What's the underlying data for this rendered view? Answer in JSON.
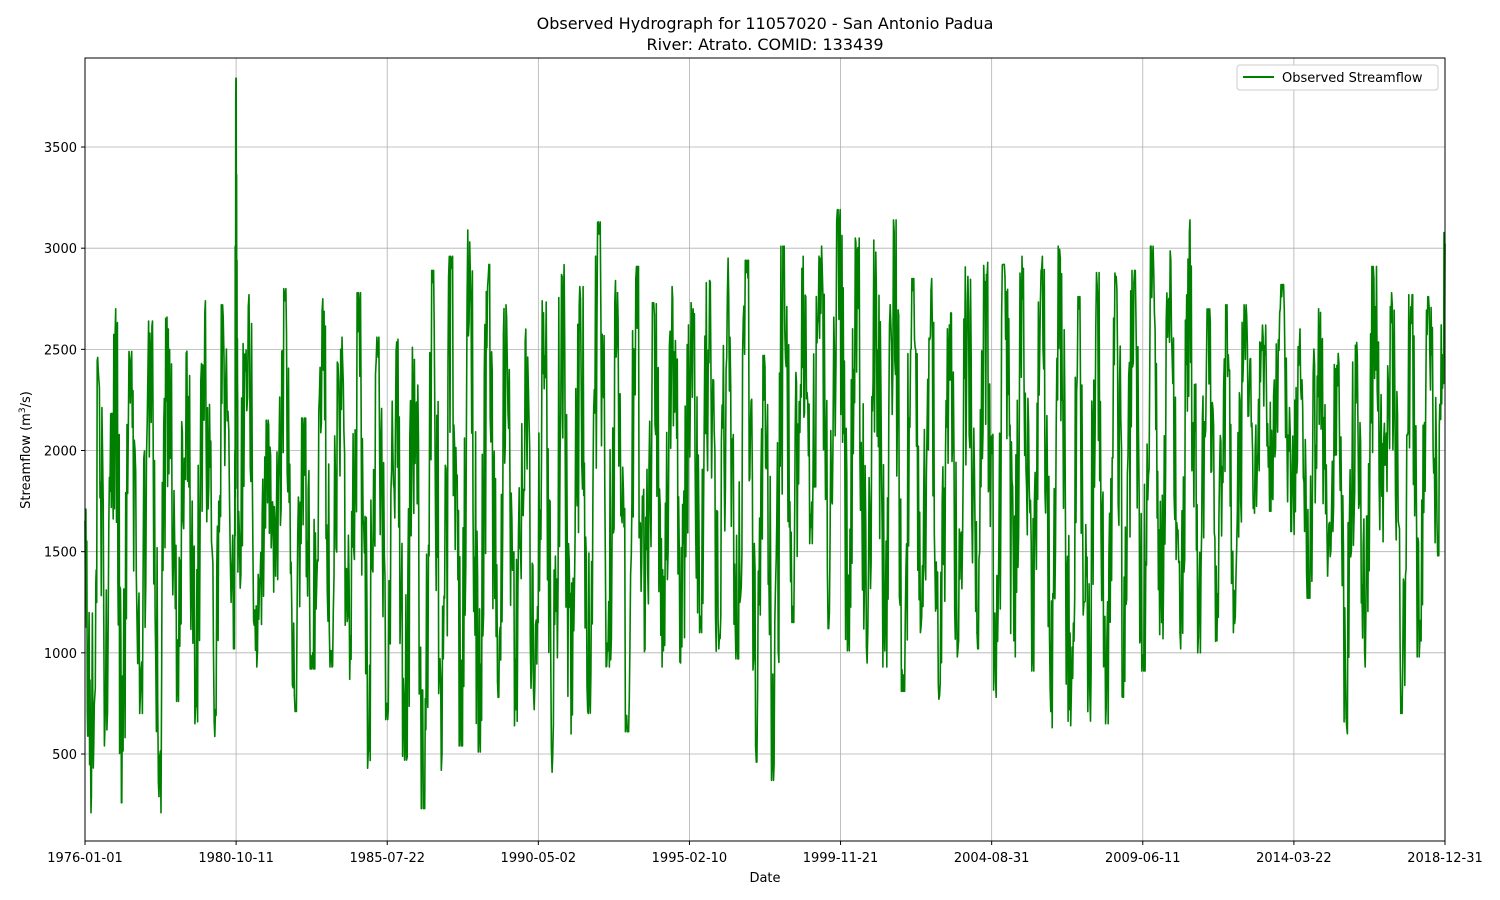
{
  "chart_data": {
    "type": "line",
    "title": "Observed Hydrograph for 11057020 - San Antonio Padua",
    "subtitle": "River: Atrato. COMID: 133439",
    "xlabel": "Date",
    "ylabel": "Streamflow (m³/s)",
    "ylabel_base": "Streamflow (m",
    "ylabel_sup": "3",
    "ylabel_tail": "/s)",
    "x_range": [
      "1976-01-01",
      "2018-12-31"
    ],
    "ylim": [
      70,
      3940
    ],
    "x_ticks": [
      "1976-01-01",
      "1980-10-11",
      "1985-07-22",
      "1990-05-02",
      "1995-02-10",
      "1999-11-21",
      "2004-08-31",
      "2009-06-11",
      "2014-03-22",
      "2018-12-31"
    ],
    "y_ticks": [
      500,
      1000,
      1500,
      2000,
      2500,
      3000,
      3500
    ],
    "grid": true,
    "legend_position": "top-right",
    "series": [
      {
        "name": "Observed Streamflow",
        "color": "#008000",
        "points": [
          [
            "1976-01-01",
            1650
          ],
          [
            "1976-03-15",
            290
          ],
          [
            "1976-06-01",
            2400
          ],
          [
            "1976-09-10",
            620
          ],
          [
            "1976-12-20",
            2700
          ],
          [
            "1977-03-01",
            260
          ],
          [
            "1977-06-15",
            2430
          ],
          [
            "1977-10-01",
            780
          ],
          [
            "1978-01-20",
            2580
          ],
          [
            "1978-05-05",
            290
          ],
          [
            "1978-08-20",
            2600
          ],
          [
            "1978-12-01",
            840
          ],
          [
            "1979-03-15",
            2480
          ],
          [
            "1979-07-01",
            730
          ],
          [
            "1979-10-15",
            2680
          ],
          [
            "1980-02-01",
            660
          ],
          [
            "1980-05-15",
            2660
          ],
          [
            "1980-09-20",
            1100
          ],
          [
            "1980-10-11",
            3780
          ],
          [
            "1980-11-01",
            1400
          ],
          [
            "1981-03-01",
            2710
          ],
          [
            "1981-06-15",
            1010
          ],
          [
            "1981-10-01",
            2090
          ],
          [
            "1982-01-10",
            1380
          ],
          [
            "1982-05-01",
            2740
          ],
          [
            "1982-08-15",
            790
          ],
          [
            "1982-12-01",
            2100
          ],
          [
            "1983-03-15",
            1000
          ],
          [
            "1983-07-01",
            2690
          ],
          [
            "1983-10-15",
            1010
          ],
          [
            "1984-02-01",
            2500
          ],
          [
            "1984-05-15",
            870
          ],
          [
            "1984-09-01",
            2720
          ],
          [
            "1984-12-15",
            510
          ],
          [
            "1985-04-01",
            2500
          ],
          [
            "1985-07-20",
            750
          ],
          [
            "1985-11-01",
            2490
          ],
          [
            "1986-02-15",
            550
          ],
          [
            "1986-06-01",
            2450
          ],
          [
            "1986-09-20",
            310
          ],
          [
            "1987-01-01",
            2830
          ],
          [
            "1987-04-15",
            500
          ],
          [
            "1987-08-01",
            2900
          ],
          [
            "1987-11-15",
            620
          ],
          [
            "1988-03-01",
            3030
          ],
          [
            "1988-06-15",
            590
          ],
          [
            "1988-10-01",
            2860
          ],
          [
            "1989-01-15",
            860
          ],
          [
            "1989-05-01",
            2660
          ],
          [
            "1989-08-15",
            720
          ],
          [
            "1989-12-01",
            2540
          ],
          [
            "1990-03-15",
            720
          ],
          [
            "1990-07-01",
            2680
          ],
          [
            "1990-10-15",
            490
          ],
          [
            "1991-02-01",
            2860
          ],
          [
            "1991-05-15",
            600
          ],
          [
            "1991-09-01",
            2750
          ],
          [
            "1991-12-15",
            780
          ],
          [
            "1992-04-01",
            3070
          ],
          [
            "1992-07-15",
            1010
          ],
          [
            "1992-11-01",
            2780
          ],
          [
            "1993-02-15",
            690
          ],
          [
            "1993-06-01",
            2850
          ],
          [
            "1993-09-15",
            1020
          ],
          [
            "1994-01-01",
            2670
          ],
          [
            "1994-04-15",
            1010
          ],
          [
            "1994-08-01",
            2750
          ],
          [
            "1994-11-15",
            1030
          ],
          [
            "1995-03-01",
            2730
          ],
          [
            "1995-06-15",
            1180
          ],
          [
            "1995-10-01",
            2840
          ],
          [
            "1996-01-15",
            1020
          ],
          [
            "1996-05-01",
            2950
          ],
          [
            "1996-08-15",
            1050
          ],
          [
            "1996-12-01",
            2880
          ],
          [
            "1997-03-15",
            540
          ],
          [
            "1997-07-01",
            2410
          ],
          [
            "1997-10-15",
            450
          ],
          [
            "1998-02-01",
            2950
          ],
          [
            "1998-05-15",
            1230
          ],
          [
            "1998-09-01",
            2900
          ],
          [
            "1998-12-15",
            1620
          ],
          [
            "1999-04-01",
            2950
          ],
          [
            "1999-07-15",
            1200
          ],
          [
            "1999-11-10",
            3130
          ],
          [
            "2000-02-15",
            1090
          ],
          [
            "2000-06-01",
            2990
          ],
          [
            "2000-09-15",
            1030
          ],
          [
            "2001-01-01",
            2980
          ],
          [
            "2001-04-15",
            1010
          ],
          [
            "2001-08-01",
            3080
          ],
          [
            "2001-11-15",
            890
          ],
          [
            "2002-03-01",
            2790
          ],
          [
            "2002-06-15",
            1180
          ],
          [
            "2002-10-01",
            2790
          ],
          [
            "2003-01-15",
            850
          ],
          [
            "2003-05-01",
            2620
          ],
          [
            "2003-08-15",
            1060
          ],
          [
            "2003-12-01",
            2860
          ],
          [
            "2004-03-15",
            1100
          ],
          [
            "2004-07-01",
            2870
          ],
          [
            "2004-10-15",
            860
          ],
          [
            "2005-02-01",
            2860
          ],
          [
            "2005-05-15",
            1060
          ],
          [
            "2005-09-01",
            2900
          ],
          [
            "2005-12-15",
            990
          ],
          [
            "2006-04-01",
            2900
          ],
          [
            "2006-07-15",
            710
          ],
          [
            "2006-11-01",
            2950
          ],
          [
            "2007-02-15",
            720
          ],
          [
            "2007-06-01",
            2700
          ],
          [
            "2007-09-15",
            710
          ],
          [
            "2008-01-01",
            2820
          ],
          [
            "2008-04-15",
            730
          ],
          [
            "2008-08-01",
            2840
          ],
          [
            "2008-11-15",
            860
          ],
          [
            "2009-03-01",
            2830
          ],
          [
            "2009-06-15",
            990
          ],
          [
            "2009-10-01",
            2950
          ],
          [
            "2010-01-15",
            1150
          ],
          [
            "2010-05-01",
            2940
          ],
          [
            "2010-08-15",
            1100
          ],
          [
            "2010-12-01",
            3080
          ],
          [
            "2011-03-15",
            1080
          ],
          [
            "2011-07-01",
            2640
          ],
          [
            "2011-10-15",
            1060
          ],
          [
            "2012-02-01",
            2660
          ],
          [
            "2012-05-15",
            1180
          ],
          [
            "2012-09-01",
            2660
          ],
          [
            "2012-12-15",
            1770
          ],
          [
            "2013-04-01",
            2560
          ],
          [
            "2013-07-15",
            1780
          ],
          [
            "2013-11-01",
            2760
          ],
          [
            "2014-02-15",
            1600
          ],
          [
            "2014-06-01",
            2600
          ],
          [
            "2014-09-15",
            1350
          ],
          [
            "2015-01-01",
            2700
          ],
          [
            "2015-04-15",
            1380
          ],
          [
            "2015-08-01",
            2420
          ],
          [
            "2015-11-15",
            680
          ],
          [
            "2016-03-01",
            2520
          ],
          [
            "2016-06-15",
            1010
          ],
          [
            "2016-10-01",
            2850
          ],
          [
            "2017-01-15",
            1550
          ],
          [
            "2017-05-01",
            2720
          ],
          [
            "2017-08-15",
            780
          ],
          [
            "2017-12-01",
            2710
          ],
          [
            "2018-03-15",
            1060
          ],
          [
            "2018-07-01",
            2700
          ],
          [
            "2018-10-15",
            1560
          ],
          [
            "2018-12-31",
            3020
          ]
        ]
      }
    ]
  }
}
